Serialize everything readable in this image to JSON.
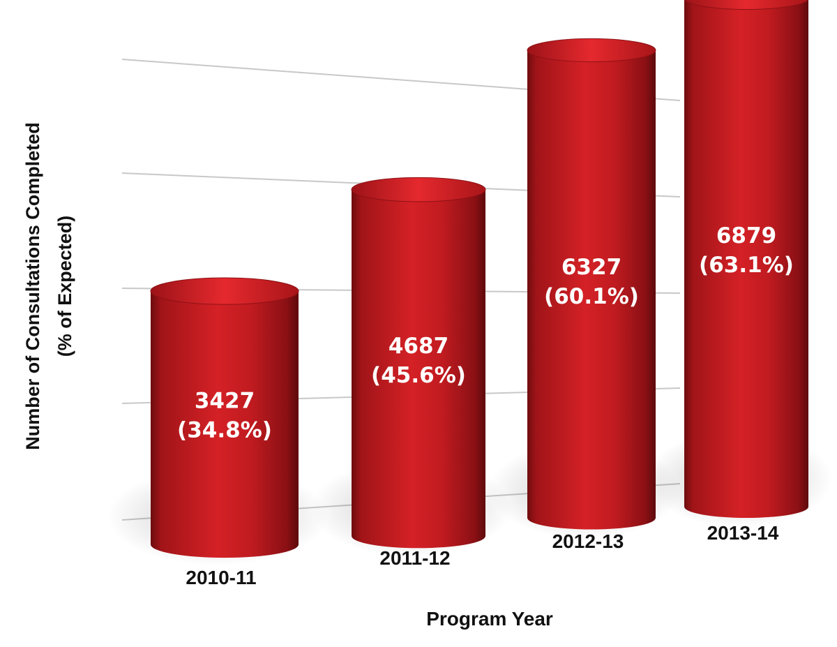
{
  "chart_data": {
    "type": "bar",
    "style": "3d-cylinder",
    "title": "",
    "xlabel": "Program Year",
    "ylabel": [
      "Number of Consultations Completed",
      "(% of Expected)"
    ],
    "categories": [
      "2010-11",
      "2011-12",
      "2012-13",
      "2013-14"
    ],
    "series": [
      {
        "values": [
          3427,
          4687,
          6327,
          6879
        ],
        "percent_of_expected": [
          "34.8%",
          "45.6%",
          "60.1%",
          "63.1%"
        ],
        "labels": [
          [
            "3427",
            "(34.8%)"
          ],
          [
            "4687",
            "(45.6%)"
          ],
          [
            "6327",
            "(60.1%)"
          ],
          [
            "6879",
            "(63.1%)"
          ]
        ]
      }
    ],
    "ylim": [
      0,
      8000
    ],
    "grid": true,
    "legend": "none",
    "colors": {
      "bar": "#b5161b",
      "bar_dark": "#6e0c0e",
      "bar_light": "#e0262b",
      "grid": "#c8c8c8"
    }
  }
}
